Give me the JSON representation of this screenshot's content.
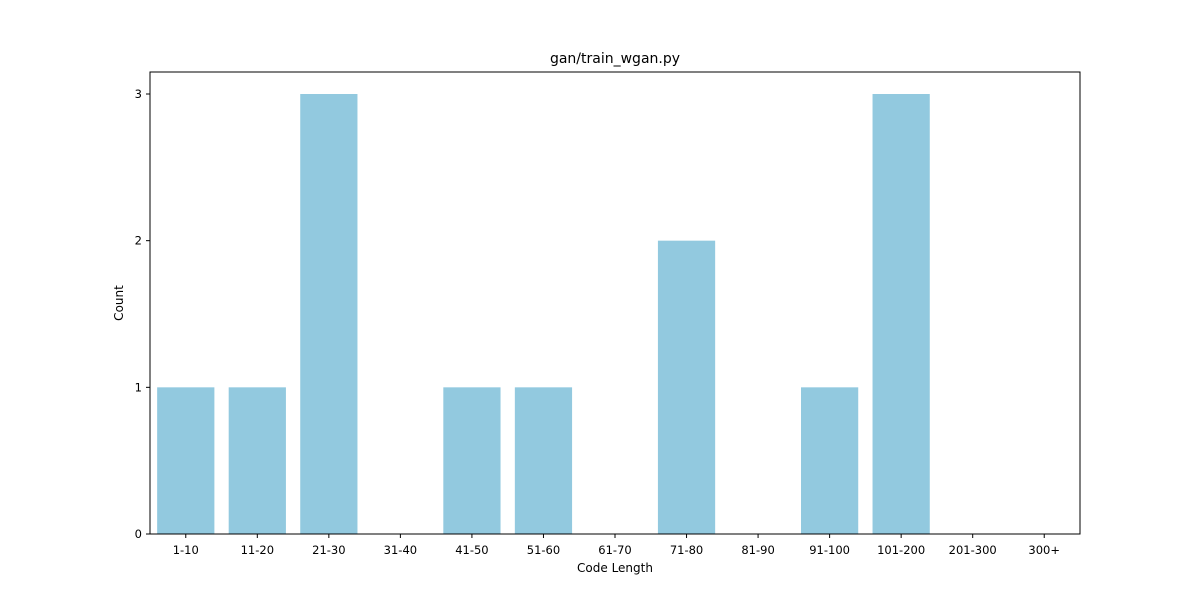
{
  "chart_data": {
    "type": "bar",
    "title": "gan/train_wgan.py",
    "xlabel": "Code Length",
    "ylabel": "Count",
    "categories": [
      "1-10",
      "11-20",
      "21-30",
      "31-40",
      "41-50",
      "51-60",
      "61-70",
      "71-80",
      "81-90",
      "91-100",
      "101-200",
      "201-300",
      "300+"
    ],
    "values": [
      1,
      1,
      3,
      0,
      1,
      1,
      0,
      2,
      0,
      1,
      3,
      0,
      0
    ],
    "ylim": [
      0,
      3.15
    ],
    "yticks": [
      0,
      1,
      2,
      3
    ],
    "bar_color": "#92c9df",
    "grid": false,
    "legend": "none"
  }
}
